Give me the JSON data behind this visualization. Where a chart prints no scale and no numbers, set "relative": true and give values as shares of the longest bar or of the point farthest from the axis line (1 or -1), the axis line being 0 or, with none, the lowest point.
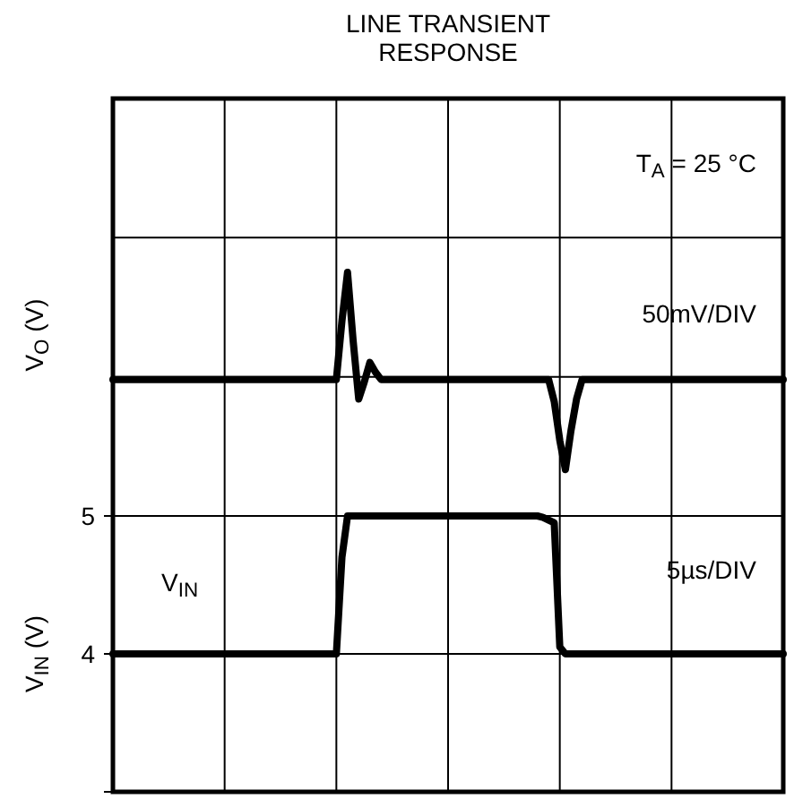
{
  "chart_data": [
    {
      "type": "line",
      "title": "LINE TRANSIENT RESPONSE",
      "ylabel": "V$_{O}$ (V)",
      "relative": true,
      "grid": true,
      "annotations": [
        "T$_{A}$ = 25 °C",
        "50mV/DIV"
      ],
      "categories": [
        null,
        null,
        null,
        null,
        null,
        null,
        null,
        null,
        null,
        null,
        null,
        null,
        null,
        null,
        null,
        null,
        null,
        null,
        null,
        null,
        null,
        null,
        null,
        null,
        null,
        null,
        null,
        null,
        null,
        null,
        null,
        null,
        null,
        null,
        null,
        null,
        null,
        null,
        null,
        null,
        null,
        null,
        null,
        null,
        null,
        null,
        null,
        null,
        null,
        null,
        null,
        null,
        null,
        null,
        null,
        null,
        null,
        null,
        null,
        null,
        null,
        null,
        null,
        null,
        null,
        null,
        null,
        null,
        null,
        null,
        null,
        null,
        null,
        null,
        null,
        null,
        null,
        null,
        null,
        null,
        null,
        null,
        null,
        null,
        null,
        null,
        null,
        null,
        null,
        null,
        null,
        null,
        null,
        null,
        null,
        null,
        null,
        null,
        null,
        null,
        null,
        null,
        null,
        null,
        null,
        null,
        null,
        null,
        null,
        null,
        null,
        null,
        null,
        null,
        null,
        null,
        null,
        null,
        null,
        null,
        null
      ],
      "series": [
        {
          "color": "#000000",
          "values": [
            0.56,
            0.56,
            0.56,
            0.56,
            0.56,
            0.56,
            0.56,
            0.56,
            0.56,
            0.56,
            0.56,
            0.56,
            0.56,
            0.56,
            0.56,
            0.56,
            0.56,
            0.56,
            0.56,
            0.56,
            0.56,
            0.56,
            0.56,
            0.56,
            0.56,
            0.56,
            0.56,
            0.56,
            0.56,
            0.56,
            0.56,
            0.56,
            0.56,
            0.56,
            0.56,
            0.56,
            0.56,
            0.56,
            0.56,
            0.56,
            0.56,
            0.8,
            1,
            0.72,
            0.48,
            0.55,
            0.63,
            0.59,
            0.56,
            0.56,
            0.56,
            0.56,
            0.56,
            0.56,
            0.56,
            0.56,
            0.56,
            0.56,
            0.56,
            0.56,
            0.56,
            0.56,
            0.56,
            0.56,
            0.56,
            0.56,
            0.56,
            0.56,
            0.56,
            0.56,
            0.56,
            0.56,
            0.56,
            0.56,
            0.56,
            0.56,
            0.56,
            0.56,
            0.56,
            0.47,
            0.31,
            0.19,
            0.35,
            0.48,
            0.56,
            0.56,
            0.56,
            0.56,
            0.56,
            0.56,
            0.56,
            0.56,
            0.56,
            0.56,
            0.56,
            0.56,
            0.56,
            0.56,
            0.56,
            0.56,
            0.56,
            0.56,
            0.56,
            0.56,
            0.56,
            0.56,
            0.56,
            0.56,
            0.56,
            0.56,
            0.56,
            0.56,
            0.56,
            0.56,
            0.56,
            0.56,
            0.56,
            0.56,
            0.56,
            0.56,
            0.56
          ]
        }
      ]
    },
    {
      "type": "line",
      "ylabel": "V$_{IN}$ (V)",
      "ylim": [
        3,
        5
      ],
      "yticks": [
        {
          "value": 3,
          "label": null
        },
        4,
        5
      ],
      "grid": true,
      "annotations": [
        "5µs/DIV"
      ],
      "categories": [
        null,
        null,
        null,
        null,
        null,
        null,
        null,
        null,
        null,
        null,
        null,
        null,
        null,
        null,
        null,
        null,
        null,
        null,
        null,
        null,
        null,
        null,
        null,
        null,
        null,
        null,
        null,
        null,
        null,
        null,
        null,
        null,
        null,
        null,
        null,
        null,
        null,
        null,
        null,
        null,
        null,
        null,
        null,
        null,
        null,
        null,
        null,
        null,
        null,
        null,
        null,
        null,
        null,
        null,
        null,
        null,
        null,
        null,
        null,
        null,
        null,
        null,
        null,
        null,
        null,
        null,
        null,
        null,
        null,
        null,
        null,
        null,
        null,
        null,
        null,
        null,
        null,
        null,
        null,
        null,
        null,
        null,
        null,
        null,
        null,
        null,
        null,
        null,
        null,
        null,
        null,
        null,
        null,
        null,
        null,
        null,
        null,
        null,
        null,
        null,
        null,
        null,
        null,
        null,
        null,
        null,
        null,
        null,
        null,
        null,
        null,
        null,
        null,
        null,
        null,
        null,
        null,
        null,
        null,
        null,
        null
      ],
      "series": [
        {
          "name": "V$_{IN}$",
          "color": "#000000",
          "values": [
            4,
            4,
            4,
            4,
            4,
            4,
            4,
            4,
            4,
            4,
            4,
            4,
            4,
            4,
            4,
            4,
            4,
            4,
            4,
            4,
            4,
            4,
            4,
            4,
            4,
            4,
            4,
            4,
            4,
            4,
            4,
            4,
            4,
            4,
            4,
            4,
            4,
            4,
            4,
            4,
            4,
            4.7,
            5,
            5,
            5,
            5,
            5,
            5,
            5,
            5,
            5,
            5,
            5,
            5,
            5,
            5,
            5,
            5,
            5,
            5,
            5,
            5,
            5,
            5,
            5,
            5,
            5,
            5,
            5,
            5,
            5,
            5,
            5,
            5,
            5,
            5,
            5,
            4.99,
            4.97,
            4.95,
            4.05,
            4,
            4,
            4,
            4,
            4,
            4,
            4,
            4,
            4,
            4,
            4,
            4,
            4,
            4,
            4,
            4,
            4,
            4,
            4,
            4,
            4,
            4,
            4,
            4,
            4,
            4,
            4,
            4,
            4,
            4,
            4,
            4,
            4,
            4,
            4,
            4,
            4,
            4,
            4,
            4
          ]
        }
      ]
    }
  ]
}
